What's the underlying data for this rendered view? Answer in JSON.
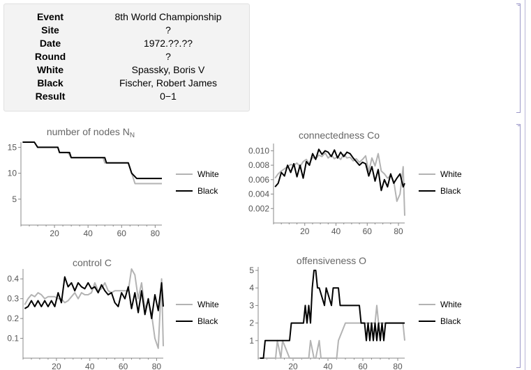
{
  "game_info": [
    {
      "key": "Event",
      "value": "8th World Championship"
    },
    {
      "key": "Site",
      "value": "?"
    },
    {
      "key": "Date",
      "value": "1972.??.??"
    },
    {
      "key": "Round",
      "value": "?"
    },
    {
      "key": "White",
      "value": "Spassky, Boris V"
    },
    {
      "key": "Black",
      "value": "Fischer, Robert James"
    },
    {
      "key": "Result",
      "value": "0−1"
    }
  ],
  "colors": {
    "white_series": "#b3b3b3",
    "black_series": "#000000",
    "title": "#666666",
    "axis": "#888888",
    "bracket": "#9b97c8"
  },
  "chart_data": [
    {
      "type": "line",
      "title": "number of nodes N",
      "title_subscript": "N",
      "xlim": [
        0,
        84
      ],
      "ylim": [
        0,
        16
      ],
      "xticks": [
        20,
        40,
        60,
        80
      ],
      "yticks": [
        5,
        10,
        15
      ],
      "yticklabels": [
        "5",
        "10",
        "15"
      ],
      "legend": [
        "White",
        "Black"
      ],
      "legend_position": "right",
      "series": [
        {
          "name": "White",
          "x": [
            1,
            8,
            10,
            22,
            23,
            28,
            30,
            49,
            50,
            64,
            66,
            68,
            84
          ],
          "y": [
            16,
            16,
            15,
            15,
            14,
            14,
            13,
            13,
            12,
            12,
            10,
            8,
            8
          ]
        },
        {
          "name": "Black",
          "x": [
            1,
            8,
            10,
            22,
            23,
            29,
            30,
            50,
            51,
            64,
            66,
            69,
            84
          ],
          "y": [
            16,
            16,
            15,
            15,
            14,
            14,
            13,
            13,
            12,
            12,
            10,
            9,
            9
          ]
        }
      ]
    },
    {
      "type": "line",
      "title": "connectedness Co",
      "xlim": [
        0,
        84
      ],
      "ylim": [
        0,
        0.011
      ],
      "xticks": [
        20,
        40,
        60,
        80
      ],
      "yticks": [
        0.002,
        0.004,
        0.006,
        0.008,
        0.01
      ],
      "yticklabels": [
        "0.002",
        "0.004",
        "0.006",
        "0.008",
        "0.010"
      ],
      "legend": [
        "White",
        "Black"
      ],
      "legend_position": "right",
      "series": [
        {
          "name": "White",
          "x": [
            1,
            3,
            5,
            7,
            9,
            11,
            13,
            15,
            17,
            19,
            21,
            23,
            25,
            27,
            29,
            31,
            33,
            35,
            37,
            39,
            41,
            43,
            45,
            47,
            49,
            51,
            53,
            55,
            57,
            59,
            61,
            63,
            65,
            67,
            69,
            71,
            73,
            75,
            77,
            79,
            81,
            83,
            84
          ],
          "y": [
            0.0062,
            0.0068,
            0.0072,
            0.0075,
            0.0078,
            0.0081,
            0.008,
            0.0083,
            0.0078,
            0.0085,
            0.0088,
            0.0082,
            0.0091,
            0.0089,
            0.0094,
            0.0092,
            0.0097,
            0.009,
            0.0094,
            0.0089,
            0.0092,
            0.0088,
            0.0095,
            0.009,
            0.0091,
            0.0086,
            0.0089,
            0.0084,
            0.0088,
            0.0093,
            0.0071,
            0.009,
            0.0079,
            0.0096,
            0.0072,
            0.0068,
            0.0062,
            0.0066,
            0.0058,
            0.003,
            0.004,
            0.0078,
            0.001
          ]
        },
        {
          "name": "Black",
          "x": [
            1,
            3,
            5,
            7,
            9,
            11,
            13,
            15,
            17,
            19,
            21,
            23,
            25,
            27,
            29,
            31,
            33,
            35,
            37,
            39,
            41,
            43,
            45,
            47,
            49,
            51,
            53,
            55,
            57,
            59,
            61,
            63,
            65,
            67,
            69,
            71,
            73,
            75,
            77,
            79,
            81,
            83,
            84
          ],
          "y": [
            0.005,
            0.0055,
            0.007,
            0.0065,
            0.008,
            0.007,
            0.0082,
            0.0064,
            0.008,
            0.0062,
            0.0085,
            0.008,
            0.0096,
            0.0088,
            0.0102,
            0.0095,
            0.01,
            0.0098,
            0.0092,
            0.0101,
            0.009,
            0.0098,
            0.0092,
            0.0098,
            0.0096,
            0.009,
            0.0085,
            0.008,
            0.0084,
            0.0082,
            0.0065,
            0.0078,
            0.0058,
            0.0074,
            0.0045,
            0.006,
            0.005,
            0.0068,
            0.0055,
            0.0062,
            0.0068,
            0.005,
            0.0055
          ]
        }
      ]
    },
    {
      "type": "line",
      "title": "control C",
      "xlim": [
        0,
        84
      ],
      "ylim": [
        0,
        0.45
      ],
      "xticks": [
        20,
        40,
        60,
        80
      ],
      "yticks": [
        0.1,
        0.2,
        0.3,
        0.4
      ],
      "yticklabels": [
        "0.1",
        "0.2",
        "0.3",
        "0.4"
      ],
      "legend": [
        "White",
        "Black"
      ],
      "legend_position": "right",
      "series": [
        {
          "name": "White",
          "x": [
            1,
            3,
            5,
            7,
            9,
            11,
            13,
            15,
            17,
            19,
            21,
            23,
            25,
            27,
            29,
            31,
            33,
            35,
            37,
            39,
            41,
            43,
            45,
            47,
            49,
            51,
            53,
            55,
            57,
            59,
            61,
            63,
            65,
            67,
            69,
            71,
            73,
            75,
            77,
            79,
            81,
            83,
            84
          ],
          "y": [
            0.27,
            0.3,
            0.32,
            0.31,
            0.33,
            0.32,
            0.3,
            0.31,
            0.31,
            0.31,
            0.3,
            0.3,
            0.28,
            0.29,
            0.31,
            0.33,
            0.3,
            0.33,
            0.32,
            0.32,
            0.33,
            0.38,
            0.34,
            0.35,
            0.38,
            0.34,
            0.33,
            0.34,
            0.34,
            0.34,
            0.34,
            0.34,
            0.45,
            0.42,
            0.3,
            0.38,
            0.25,
            0.29,
            0.22,
            0.1,
            0.05,
            0.4,
            0.06
          ]
        },
        {
          "name": "Black",
          "x": [
            1,
            3,
            5,
            7,
            9,
            11,
            13,
            15,
            17,
            19,
            21,
            23,
            25,
            27,
            29,
            31,
            33,
            35,
            37,
            39,
            41,
            43,
            45,
            47,
            49,
            51,
            53,
            55,
            57,
            59,
            61,
            63,
            65,
            67,
            69,
            71,
            73,
            75,
            77,
            79,
            81,
            83,
            84
          ],
          "y": [
            0.25,
            0.26,
            0.29,
            0.26,
            0.29,
            0.26,
            0.29,
            0.26,
            0.29,
            0.26,
            0.33,
            0.28,
            0.41,
            0.36,
            0.38,
            0.34,
            0.38,
            0.36,
            0.35,
            0.38,
            0.35,
            0.36,
            0.33,
            0.37,
            0.34,
            0.32,
            0.33,
            0.28,
            0.26,
            0.33,
            0.3,
            0.36,
            0.25,
            0.33,
            0.23,
            0.34,
            0.22,
            0.3,
            0.2,
            0.32,
            0.24,
            0.38,
            0.26
          ]
        }
      ]
    },
    {
      "type": "line",
      "title": "offensiveness O",
      "xlim": [
        0,
        84
      ],
      "ylim": [
        0,
        5.2
      ],
      "xticks": [
        20,
        40,
        60,
        80
      ],
      "yticks": [
        1,
        2,
        3,
        4,
        5
      ],
      "yticklabels": [
        "1",
        "2",
        "3",
        "4",
        "5"
      ],
      "legend": [
        "White",
        "Black"
      ],
      "legend_position": "right",
      "series": [
        {
          "name": "White",
          "x": [
            1,
            10,
            11,
            13,
            14,
            18,
            19,
            21,
            22,
            29,
            30,
            32,
            33,
            35,
            36,
            38,
            39,
            45,
            46,
            50,
            51,
            61,
            62,
            66,
            67,
            68,
            69,
            73,
            74,
            82,
            83,
            84
          ],
          "y": [
            0,
            0,
            1,
            0,
            1,
            0,
            0,
            0,
            0,
            0,
            1,
            0,
            0,
            1,
            0,
            0,
            0,
            0,
            1,
            2,
            2,
            2,
            2,
            2,
            2,
            3,
            2,
            2,
            2,
            2,
            2,
            1
          ]
        },
        {
          "name": "Black",
          "x": [
            1,
            3,
            4,
            8,
            9,
            18,
            19,
            22,
            23,
            26,
            27,
            28,
            29,
            30,
            31,
            32,
            33,
            34,
            35,
            38,
            39,
            42,
            43,
            46,
            47,
            50,
            51,
            58,
            59,
            61,
            62,
            63,
            64,
            65,
            66,
            67,
            68,
            69,
            70,
            71,
            72,
            73,
            75,
            82,
            83,
            84
          ],
          "y": [
            0,
            0,
            1,
            1,
            1,
            1,
            2,
            2,
            2,
            2,
            3,
            2,
            3,
            2,
            4,
            5,
            5,
            4,
            4,
            3,
            4,
            3,
            4,
            4,
            3,
            3,
            3,
            3,
            2,
            2,
            1,
            2,
            1,
            2,
            1,
            2,
            1,
            2,
            1,
            2,
            1,
            2,
            2,
            2,
            2,
            2
          ]
        }
      ]
    }
  ]
}
